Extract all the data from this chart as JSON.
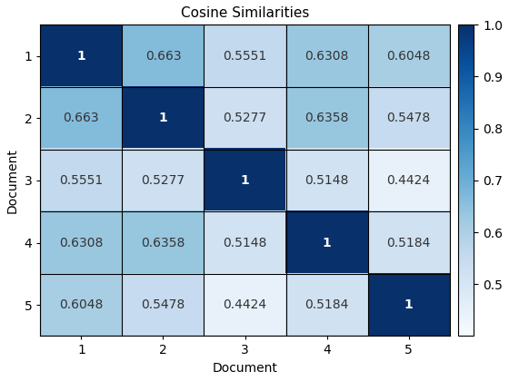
{
  "title": "Cosine Similarities",
  "xlabel": "Document",
  "ylabel": "Document",
  "matrix": [
    [
      1.0,
      0.663,
      0.5551,
      0.6308,
      0.6048
    ],
    [
      0.663,
      1.0,
      0.5277,
      0.6358,
      0.5478
    ],
    [
      0.5551,
      0.5277,
      1.0,
      0.5148,
      0.4424
    ],
    [
      0.6308,
      0.6358,
      0.5148,
      1.0,
      0.5184
    ],
    [
      0.6048,
      0.5478,
      0.4424,
      0.5184,
      1.0
    ]
  ],
  "tick_labels": [
    "1",
    "2",
    "3",
    "4",
    "5"
  ],
  "vmin": 0.4,
  "vmax": 1.0,
  "cmap": "Blues",
  "colorbar_ticks": [
    0.5,
    0.6,
    0.7,
    0.8,
    0.9,
    1.0
  ],
  "text_color_threshold": 0.78,
  "title_fontsize": 11,
  "label_fontsize": 10,
  "tick_fontsize": 10,
  "annotation_fontsize": 10
}
